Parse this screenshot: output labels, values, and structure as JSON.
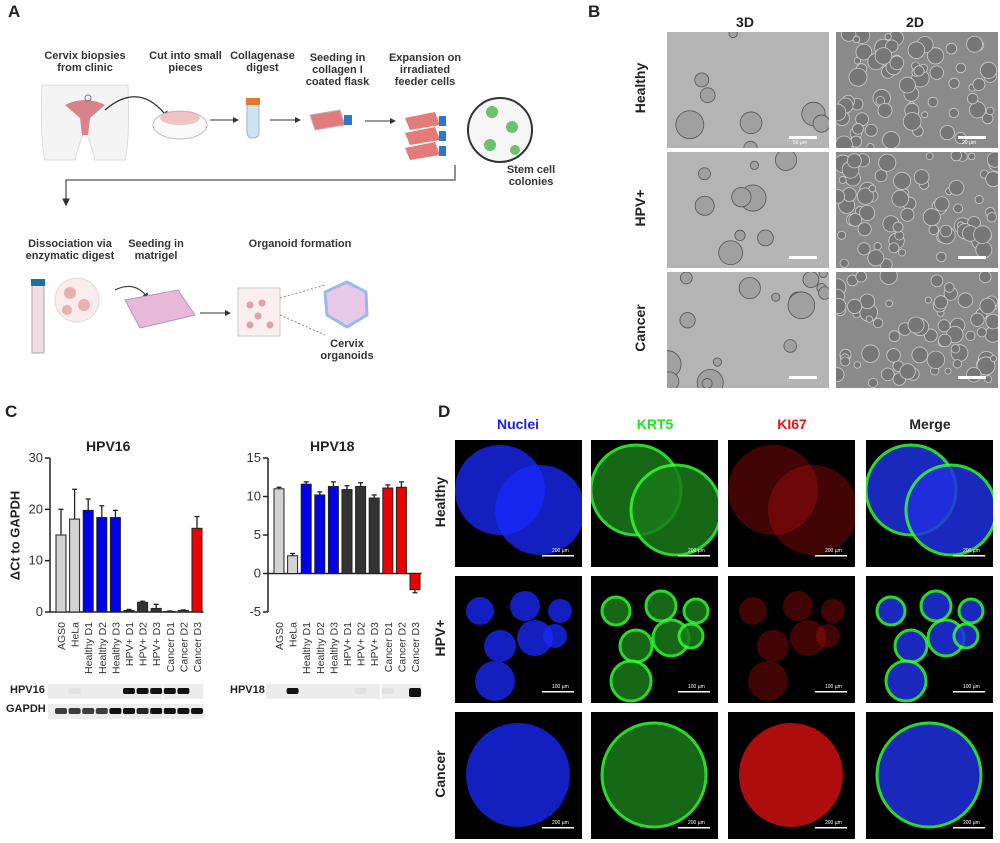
{
  "panels": {
    "A": "A",
    "B": "B",
    "C": "C",
    "D": "D"
  },
  "panel_a": {
    "steps": [
      "Cervix biopsies from clinic",
      "Cut into small pieces",
      "Collagenase digest",
      "Seeding in collagen I coated flask",
      "Expansion on irradiated feeder cells",
      "Stem cell colonies",
      "Dissociation via enzymatic digest",
      "Seeding in matrigel",
      "Organoid formation",
      "Cervix organoids"
    ]
  },
  "panel_b": {
    "columns": [
      "3D",
      "2D"
    ],
    "rows": [
      "Healthy",
      "HPV+",
      "Cancer"
    ],
    "scale_bars": [
      "50 µm",
      "20 µm"
    ]
  },
  "panel_d": {
    "columns": [
      "Nuclei",
      "KRT5",
      "KI67",
      "Merge"
    ],
    "column_colors": [
      "#1a1aff",
      "#22dd22",
      "#ee1111",
      "#222222"
    ],
    "rows": [
      "Healthy",
      "HPV+",
      "Cancer"
    ],
    "scale_bars": [
      "200 µm",
      "100 µm",
      "200 µm"
    ]
  },
  "chart_data": [
    {
      "type": "bar",
      "title": "HPV16",
      "ylabel": "ΔCt to GAPDH",
      "ylim": [
        0,
        30
      ],
      "yticks": [
        "0",
        "10",
        "20",
        "30"
      ],
      "categories": [
        "AGS0",
        "HeLa",
        "Healthy D1",
        "Healthy D2",
        "Healthy D3",
        "HPV+ D1",
        "HPV+ D2",
        "HPV+ D3",
        "Cancer D1",
        "Cancer D2",
        "Cancer D3"
      ],
      "values": [
        15.0,
        18.1,
        19.8,
        18.4,
        18.4,
        0.3,
        1.9,
        0.7,
        0.1,
        0.3,
        16.3
      ],
      "errors": [
        5.0,
        5.8,
        2.2,
        2.3,
        1.4,
        0.2,
        0.2,
        0.8,
        0.1,
        0.1,
        2.3
      ],
      "colors": [
        "#d3d3d3",
        "#d3d3d3",
        "#0000ee",
        "#0000ee",
        "#0000ee",
        "#333333",
        "#333333",
        "#333333",
        "#ee0000",
        "#ee0000",
        "#ee0000"
      ],
      "gel": [
        {
          "label": "HPV16",
          "bands": [
            0,
            0.05,
            0,
            0,
            0,
            1,
            1,
            1,
            1,
            1,
            0
          ]
        },
        {
          "label": "GAPDH",
          "bands": [
            0.8,
            0.8,
            0.8,
            0.8,
            1,
            1,
            0.9,
            1,
            1,
            1,
            1
          ]
        }
      ]
    },
    {
      "type": "bar",
      "title": "HPV18",
      "ylabel": "",
      "ylim": [
        -5,
        15
      ],
      "yticks": [
        "-5",
        "0",
        "5",
        "10",
        "15"
      ],
      "categories": [
        "AGS0",
        "HeLa",
        "Healthy D1",
        "Healthy D2",
        "Healthy D3",
        "HPV+ D1",
        "HPV+ D2",
        "HPV+ D3",
        "Cancer D1",
        "Cancer D2",
        "Cancer D3"
      ],
      "values": [
        11.0,
        2.3,
        11.6,
        10.2,
        11.3,
        10.9,
        11.3,
        9.8,
        11.1,
        11.2,
        -2.1
      ],
      "errors": [
        0.2,
        0.3,
        0.3,
        0.4,
        0.6,
        0.5,
        0.5,
        0.4,
        0.4,
        0.7,
        0.4
      ],
      "colors": [
        "#d3d3d3",
        "#d3d3d3",
        "#0000ee",
        "#0000ee",
        "#0000ee",
        "#333333",
        "#333333",
        "#333333",
        "#ee0000",
        "#ee0000",
        "#ee0000"
      ],
      "gel": [
        {
          "label": "HPV18",
          "bands": [
            0,
            1,
            0,
            0,
            0,
            0,
            0.05,
            0,
            0.05,
            0,
            1.3
          ]
        }
      ]
    }
  ]
}
